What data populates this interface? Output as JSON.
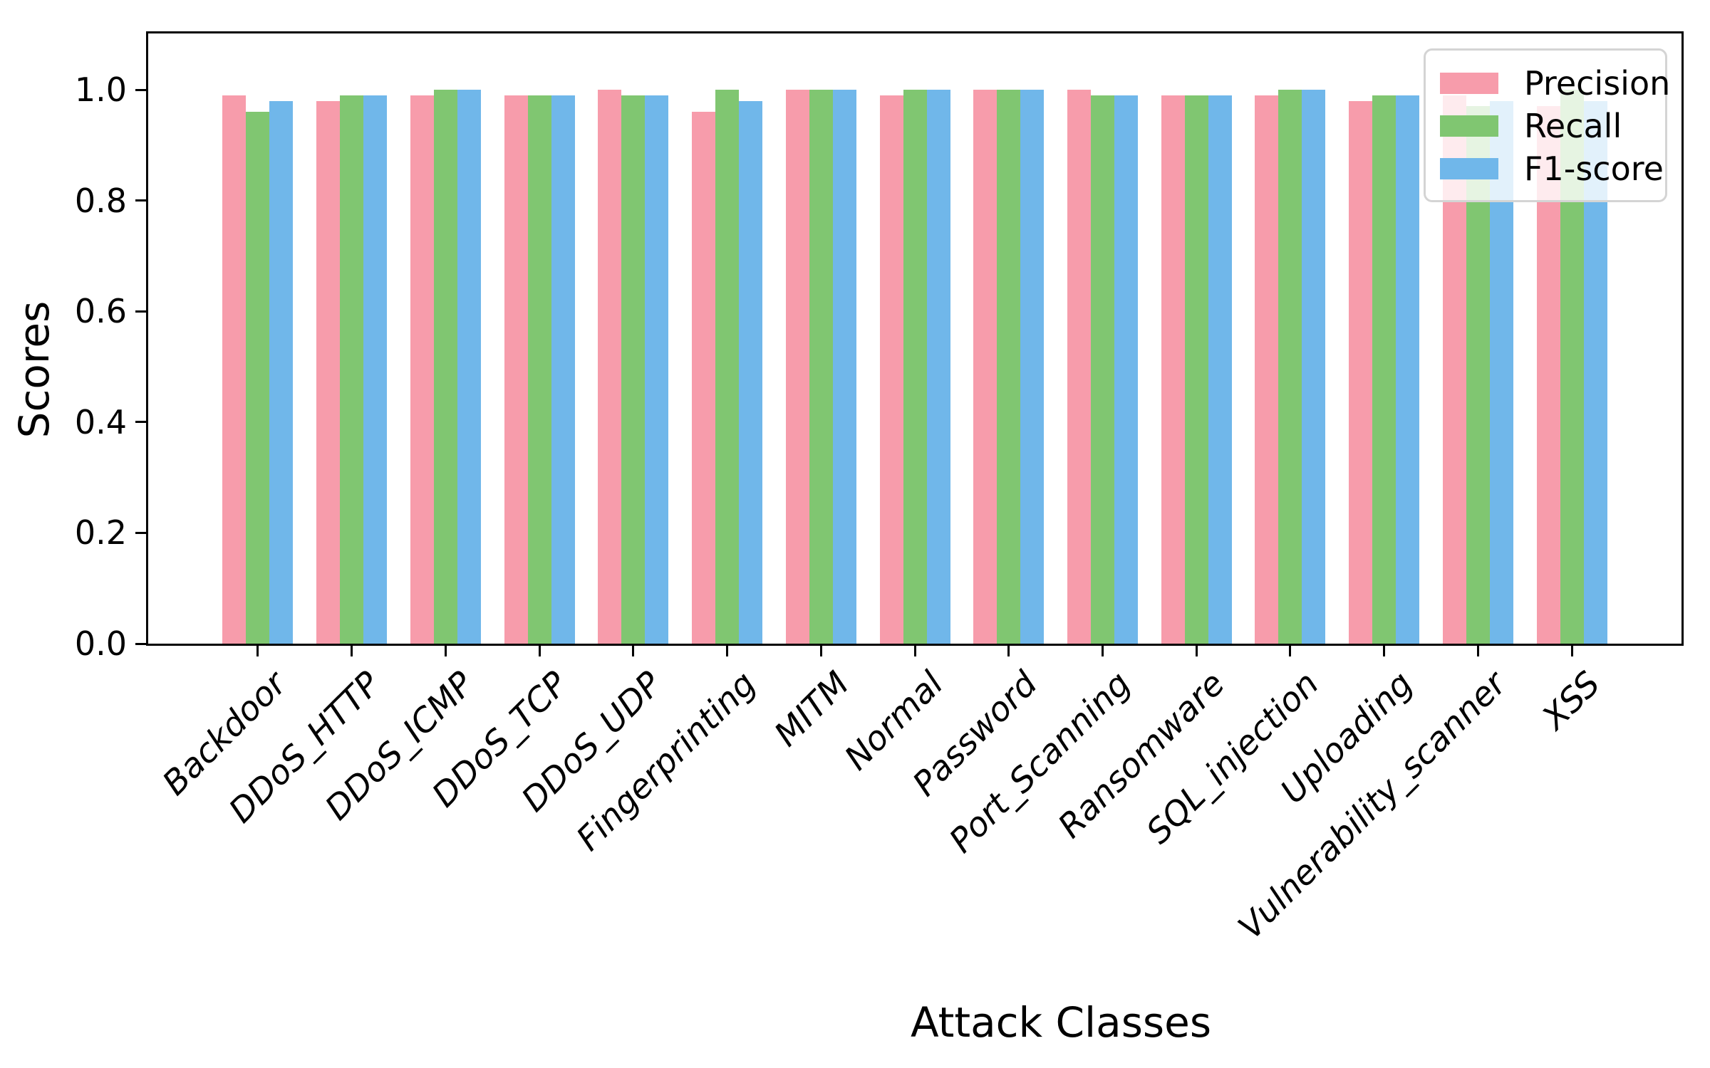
{
  "figure": {
    "background_color": "#ffffff",
    "spine_color": "#000000"
  },
  "chart_data": {
    "type": "bar",
    "title": "",
    "xlabel": "Attack Classes",
    "ylabel": "Scores",
    "categories": [
      "Backdoor",
      "DDoS_HTTP",
      "DDoS_ICMP",
      "DDoS_TCP",
      "DDoS_UDP",
      "Fingerprinting",
      "MITM",
      "Normal",
      "Password",
      "Port_Scanning",
      "Ransomware",
      "SQL_injection",
      "Uploading",
      "Vulnerability_scanner",
      "XSS"
    ],
    "series": [
      {
        "name": "Precision",
        "color": "#f79cab",
        "values": [
          0.99,
          0.98,
          0.99,
          0.99,
          1.0,
          0.96,
          1.0,
          0.99,
          1.0,
          1.0,
          0.99,
          0.99,
          0.98,
          0.99,
          0.97
        ]
      },
      {
        "name": "Recall",
        "color": "#80c671",
        "values": [
          0.96,
          0.99,
          1.0,
          0.99,
          0.99,
          1.0,
          1.0,
          1.0,
          1.0,
          0.99,
          0.99,
          1.0,
          0.99,
          0.97,
          1.0
        ]
      },
      {
        "name": "F1-score",
        "color": "#70b7ea",
        "values": [
          0.98,
          0.99,
          1.0,
          0.99,
          0.99,
          0.98,
          1.0,
          1.0,
          1.0,
          0.99,
          0.99,
          1.0,
          0.99,
          0.98,
          0.98
        ]
      }
    ],
    "ylim": [
      0.0,
      1.1016
    ],
    "yticks": [
      {
        "value": 0.0,
        "label": "0.0"
      },
      {
        "value": 0.2,
        "label": "0.2"
      },
      {
        "value": 0.4,
        "label": "0.4"
      },
      {
        "value": 0.6,
        "label": "0.6"
      },
      {
        "value": 0.8,
        "label": "0.8"
      },
      {
        "value": 1.0,
        "label": "1.0"
      }
    ],
    "legend_position": "upper right",
    "grid": false,
    "xtick_rotation_deg": 45,
    "xtick_style": "italic"
  }
}
